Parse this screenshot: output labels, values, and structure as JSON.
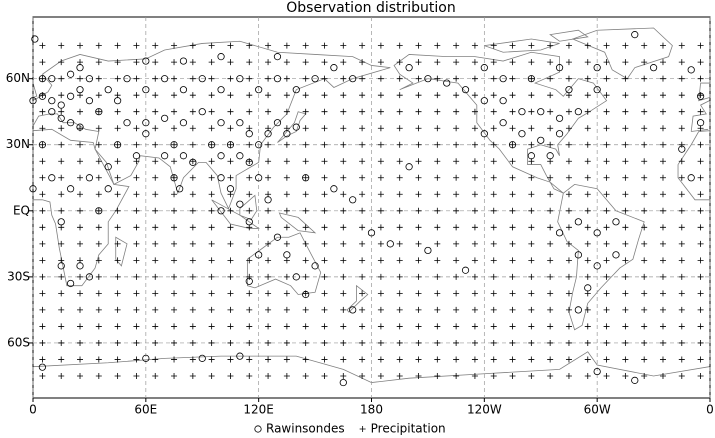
{
  "chart_data": {
    "type": "scatter",
    "title": "Observation distribution",
    "xlim": [
      0,
      360
    ],
    "ylim": [
      -85,
      88
    ],
    "xticks": [
      0,
      {
        "value": 60,
        "label": "60E"
      },
      {
        "value": 120,
        "label": "120E"
      },
      180,
      {
        "value": 240,
        "label": "120W"
      },
      {
        "value": 300,
        "label": "60W"
      },
      {
        "value": 360,
        "label": "0"
      }
    ],
    "yticks": [
      {
        "value": 60,
        "label": "60N"
      },
      {
        "value": 30,
        "label": "30N"
      },
      {
        "value": 0,
        "label": "EQ"
      },
      {
        "value": -30,
        "label": "30S"
      },
      {
        "value": -60,
        "label": "60S"
      }
    ],
    "grid": true,
    "series": [
      {
        "name": "Rawinsondes",
        "marker": "circle",
        "color": "#000000",
        "x": [
          0,
          5,
          10,
          15,
          20,
          25,
          30,
          35,
          10,
          15,
          20,
          25,
          5,
          10,
          20,
          25,
          30,
          40,
          45,
          355,
          355,
          350,
          50,
          60,
          70,
          80,
          90,
          100,
          110,
          120,
          130,
          140,
          60,
          80,
          100,
          130,
          160,
          170,
          150,
          50,
          60,
          70,
          80,
          90,
          100,
          110,
          115,
          120,
          125,
          130,
          135,
          140,
          105,
          110,
          115,
          100,
          95,
          75,
          80,
          85,
          75,
          78,
          70,
          55,
          45,
          40,
          60,
          100,
          105,
          120,
          110,
          100,
          115,
          125,
          145,
          0,
          10,
          20,
          30,
          35,
          15,
          25,
          30,
          20,
          15,
          40,
          5,
          350,
          345,
          130,
          120,
          115,
          140,
          150,
          145,
          135,
          170,
          200,
          180,
          190,
          160,
          170,
          210,
          230,
          210,
          220,
          230,
          240,
          250,
          260,
          270,
          280,
          290,
          250,
          260,
          270,
          280,
          240,
          255,
          265,
          275,
          250,
          265,
          285,
          300,
          300,
          280,
          240,
          200,
          330,
          320,
          290,
          300,
          310,
          300,
          295,
          290,
          290,
          310,
          280,
          60,
          90,
          110,
          165,
          300,
          320,
          5,
          1
        ],
        "y": [
          50,
          52,
          50,
          48,
          52,
          55,
          50,
          45,
          45,
          42,
          40,
          38,
          60,
          60,
          62,
          65,
          60,
          55,
          50,
          40,
          52,
          64,
          60,
          55,
          60,
          55,
          60,
          55,
          60,
          55,
          60,
          55,
          68,
          68,
          70,
          70,
          65,
          60,
          60,
          40,
          40,
          42,
          40,
          45,
          40,
          40,
          35,
          30,
          35,
          40,
          35,
          38,
          30,
          25,
          22,
          25,
          30,
          30,
          25,
          22,
          15,
          10,
          25,
          25,
          30,
          20,
          35,
          15,
          10,
          15,
          3,
          0,
          -5,
          5,
          15,
          10,
          15,
          10,
          15,
          0,
          -5,
          -25,
          -30,
          -33,
          -25,
          10,
          30,
          15,
          28,
          -12,
          -20,
          -32,
          -30,
          -25,
          -38,
          -20,
          -45,
          20,
          -10,
          -15,
          10,
          5,
          -18,
          -27,
          60,
          58,
          55,
          50,
          50,
          45,
          45,
          42,
          45,
          40,
          35,
          32,
          35,
          35,
          30,
          25,
          25,
          60,
          60,
          55,
          55,
          65,
          65,
          65,
          65,
          65,
          80,
          -5,
          -10,
          -20,
          -25,
          -35,
          -45,
          -20,
          -5,
          -10,
          -67,
          -67,
          -66,
          -78,
          -73,
          -77,
          -71,
          78
        ]
      },
      {
        "name": "Precipitation",
        "marker": "plus",
        "color": "#000000",
        "grid_x": [
          5,
          15,
          25,
          35,
          45,
          55,
          65,
          75,
          85,
          95,
          105,
          115,
          125,
          135,
          145,
          155,
          165,
          175,
          185,
          195,
          205,
          215,
          225,
          235,
          245,
          255,
          265,
          275,
          285,
          295,
          305,
          315,
          325,
          335,
          345,
          355
        ],
        "grid_y": [
          75,
          67.5,
          60,
          52.5,
          45,
          37.5,
          30,
          22.5,
          15,
          7.5,
          0,
          -7.5,
          -15,
          -22.5,
          -30,
          -37.5,
          -45,
          -52.5,
          -60,
          -67.5,
          -75
        ]
      }
    ]
  }
}
